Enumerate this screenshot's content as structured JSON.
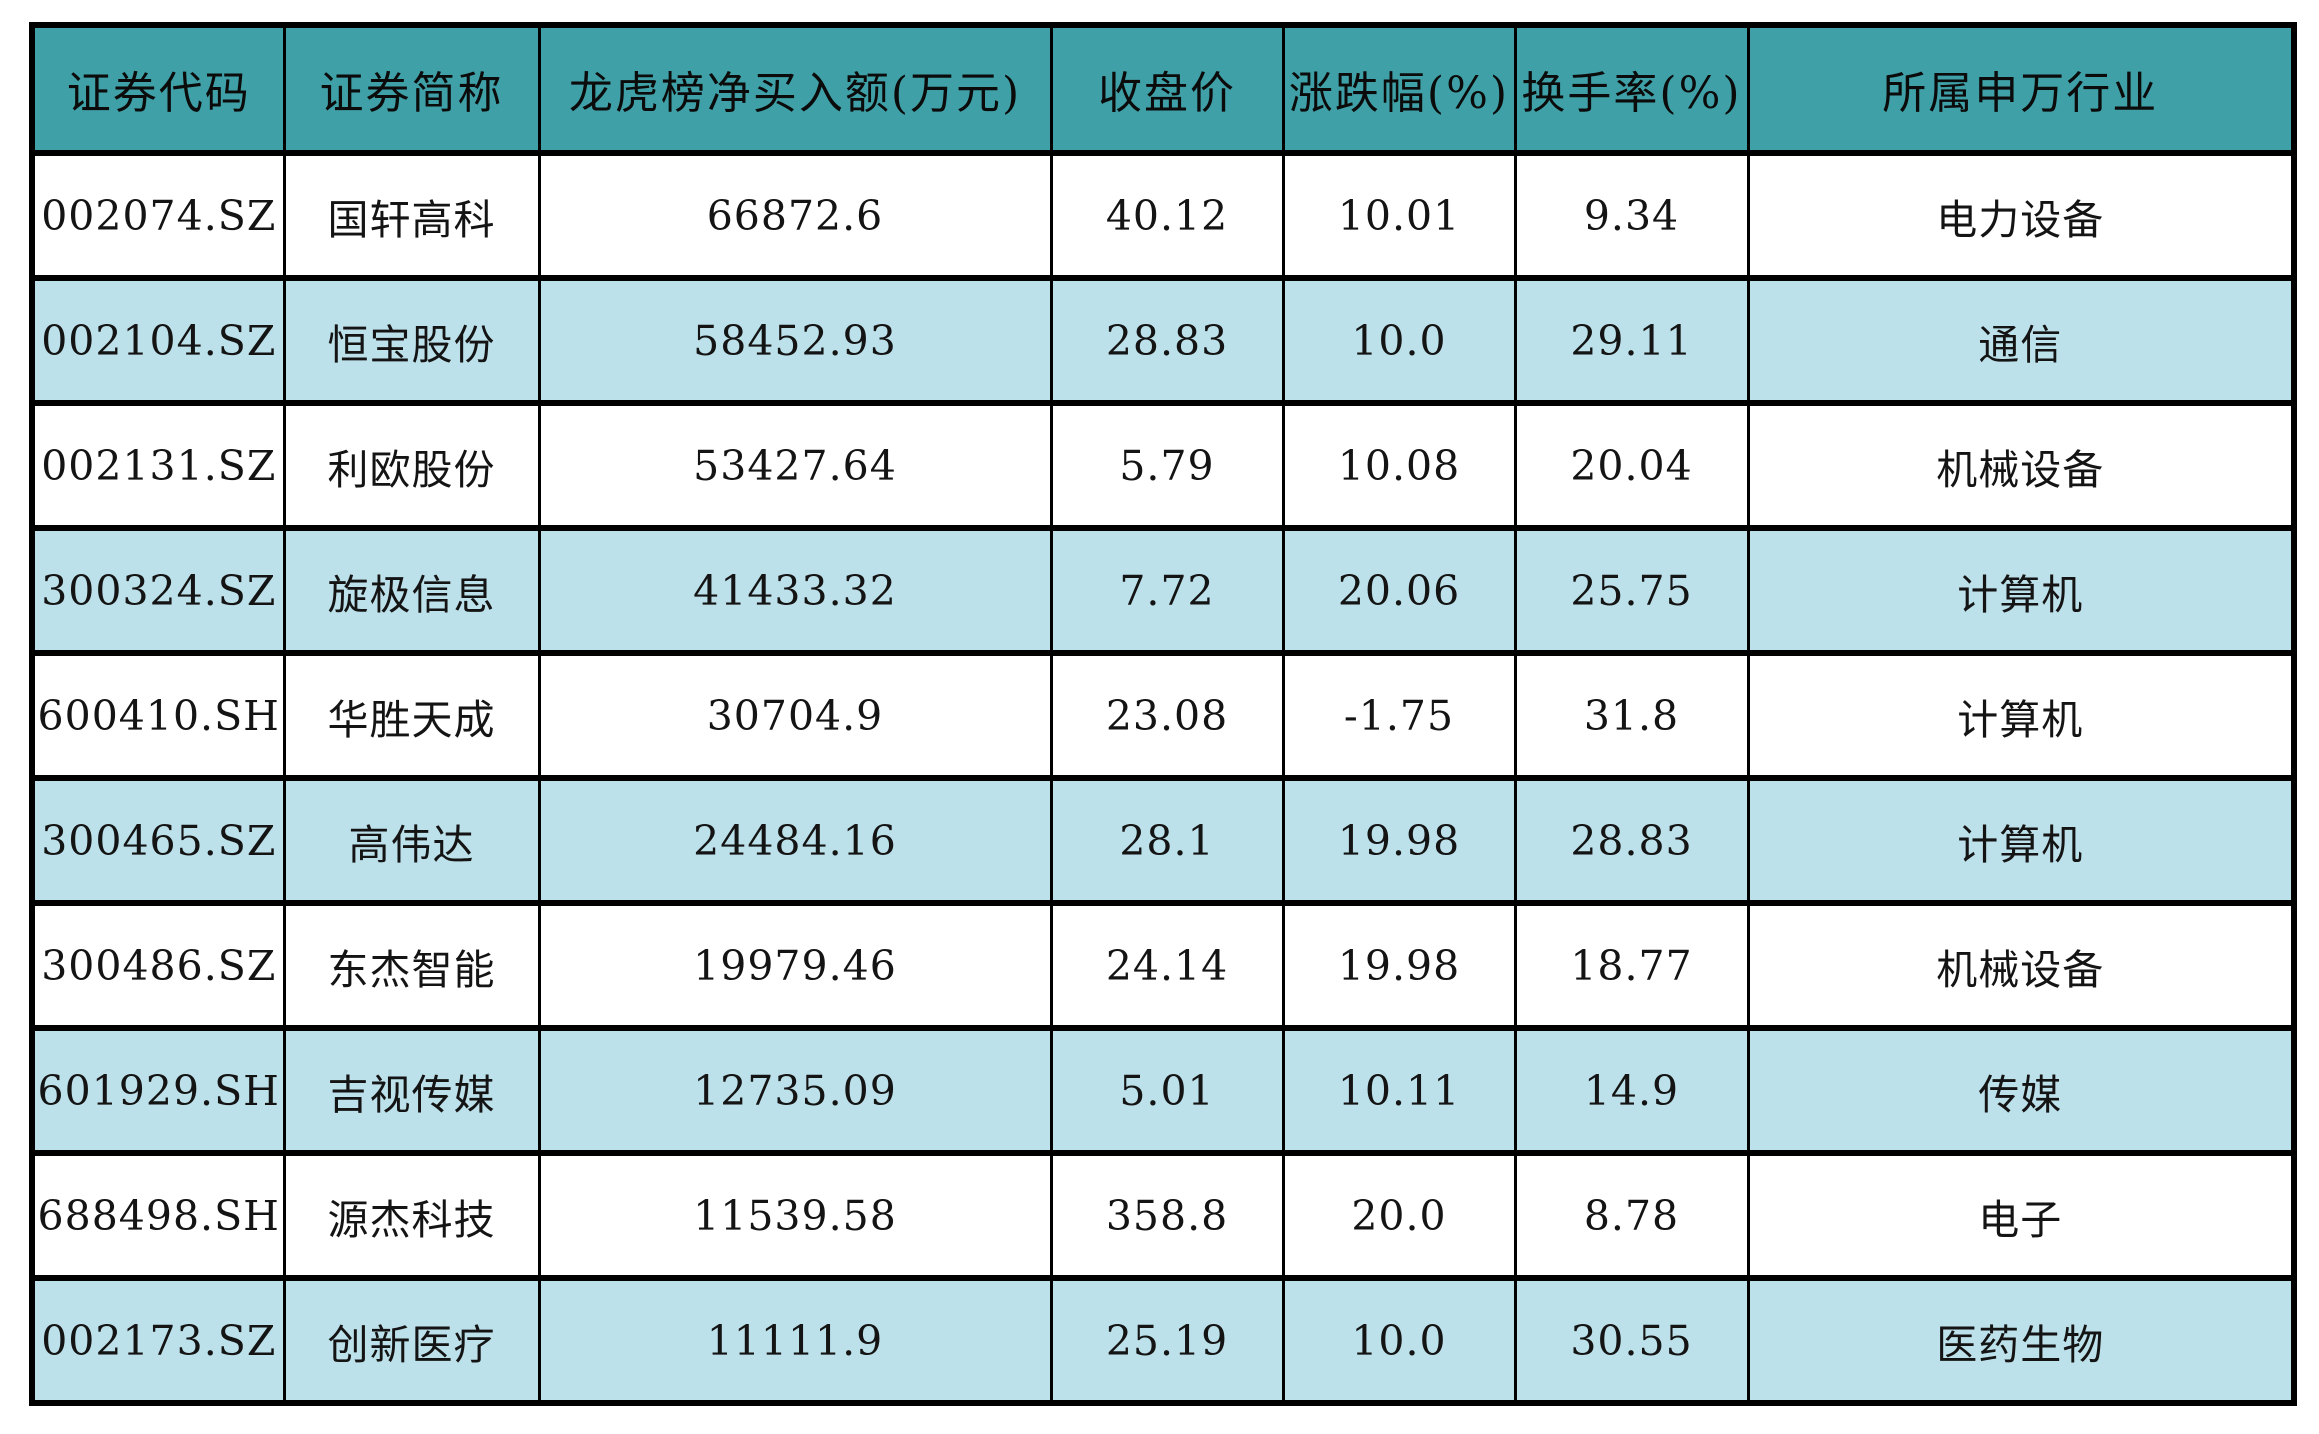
{
  "colors": {
    "header_bg": "#3fa1a7",
    "row_bg": "#ffffff",
    "row_alt_bg": "#bde1ea",
    "border": "#000000",
    "text": "#141414"
  },
  "chart_data": {
    "type": "table",
    "title": "",
    "columns": [
      "证券代码",
      "证券简称",
      "龙虎榜净买入额(万元)",
      "收盘价",
      "涨跌幅(%)",
      "换手率(%)",
      "所属申万行业"
    ],
    "rows": [
      [
        "002074.SZ",
        "国轩高科",
        "66872.6",
        "40.12",
        "10.01",
        "9.34",
        "电力设备"
      ],
      [
        "002104.SZ",
        "恒宝股份",
        "58452.93",
        "28.83",
        "10.0",
        "29.11",
        "通信"
      ],
      [
        "002131.SZ",
        "利欧股份",
        "53427.64",
        "5.79",
        "10.08",
        "20.04",
        "机械设备"
      ],
      [
        "300324.SZ",
        "旋极信息",
        "41433.32",
        "7.72",
        "20.06",
        "25.75",
        "计算机"
      ],
      [
        "600410.SH",
        "华胜天成",
        "30704.9",
        "23.08",
        "-1.75",
        "31.8",
        "计算机"
      ],
      [
        "300465.SZ",
        "高伟达",
        "24484.16",
        "28.1",
        "19.98",
        "28.83",
        "计算机"
      ],
      [
        "300486.SZ",
        "东杰智能",
        "19979.46",
        "24.14",
        "19.98",
        "18.77",
        "机械设备"
      ],
      [
        "601929.SH",
        "吉视传媒",
        "12735.09",
        "5.01",
        "10.11",
        "14.9",
        "传媒"
      ],
      [
        "688498.SH",
        "源杰科技",
        "11539.58",
        "358.8",
        "20.0",
        "8.78",
        "电子"
      ],
      [
        "002173.SZ",
        "创新医疗",
        "11111.9",
        "25.19",
        "10.0",
        "30.55",
        "医药生物"
      ]
    ]
  }
}
